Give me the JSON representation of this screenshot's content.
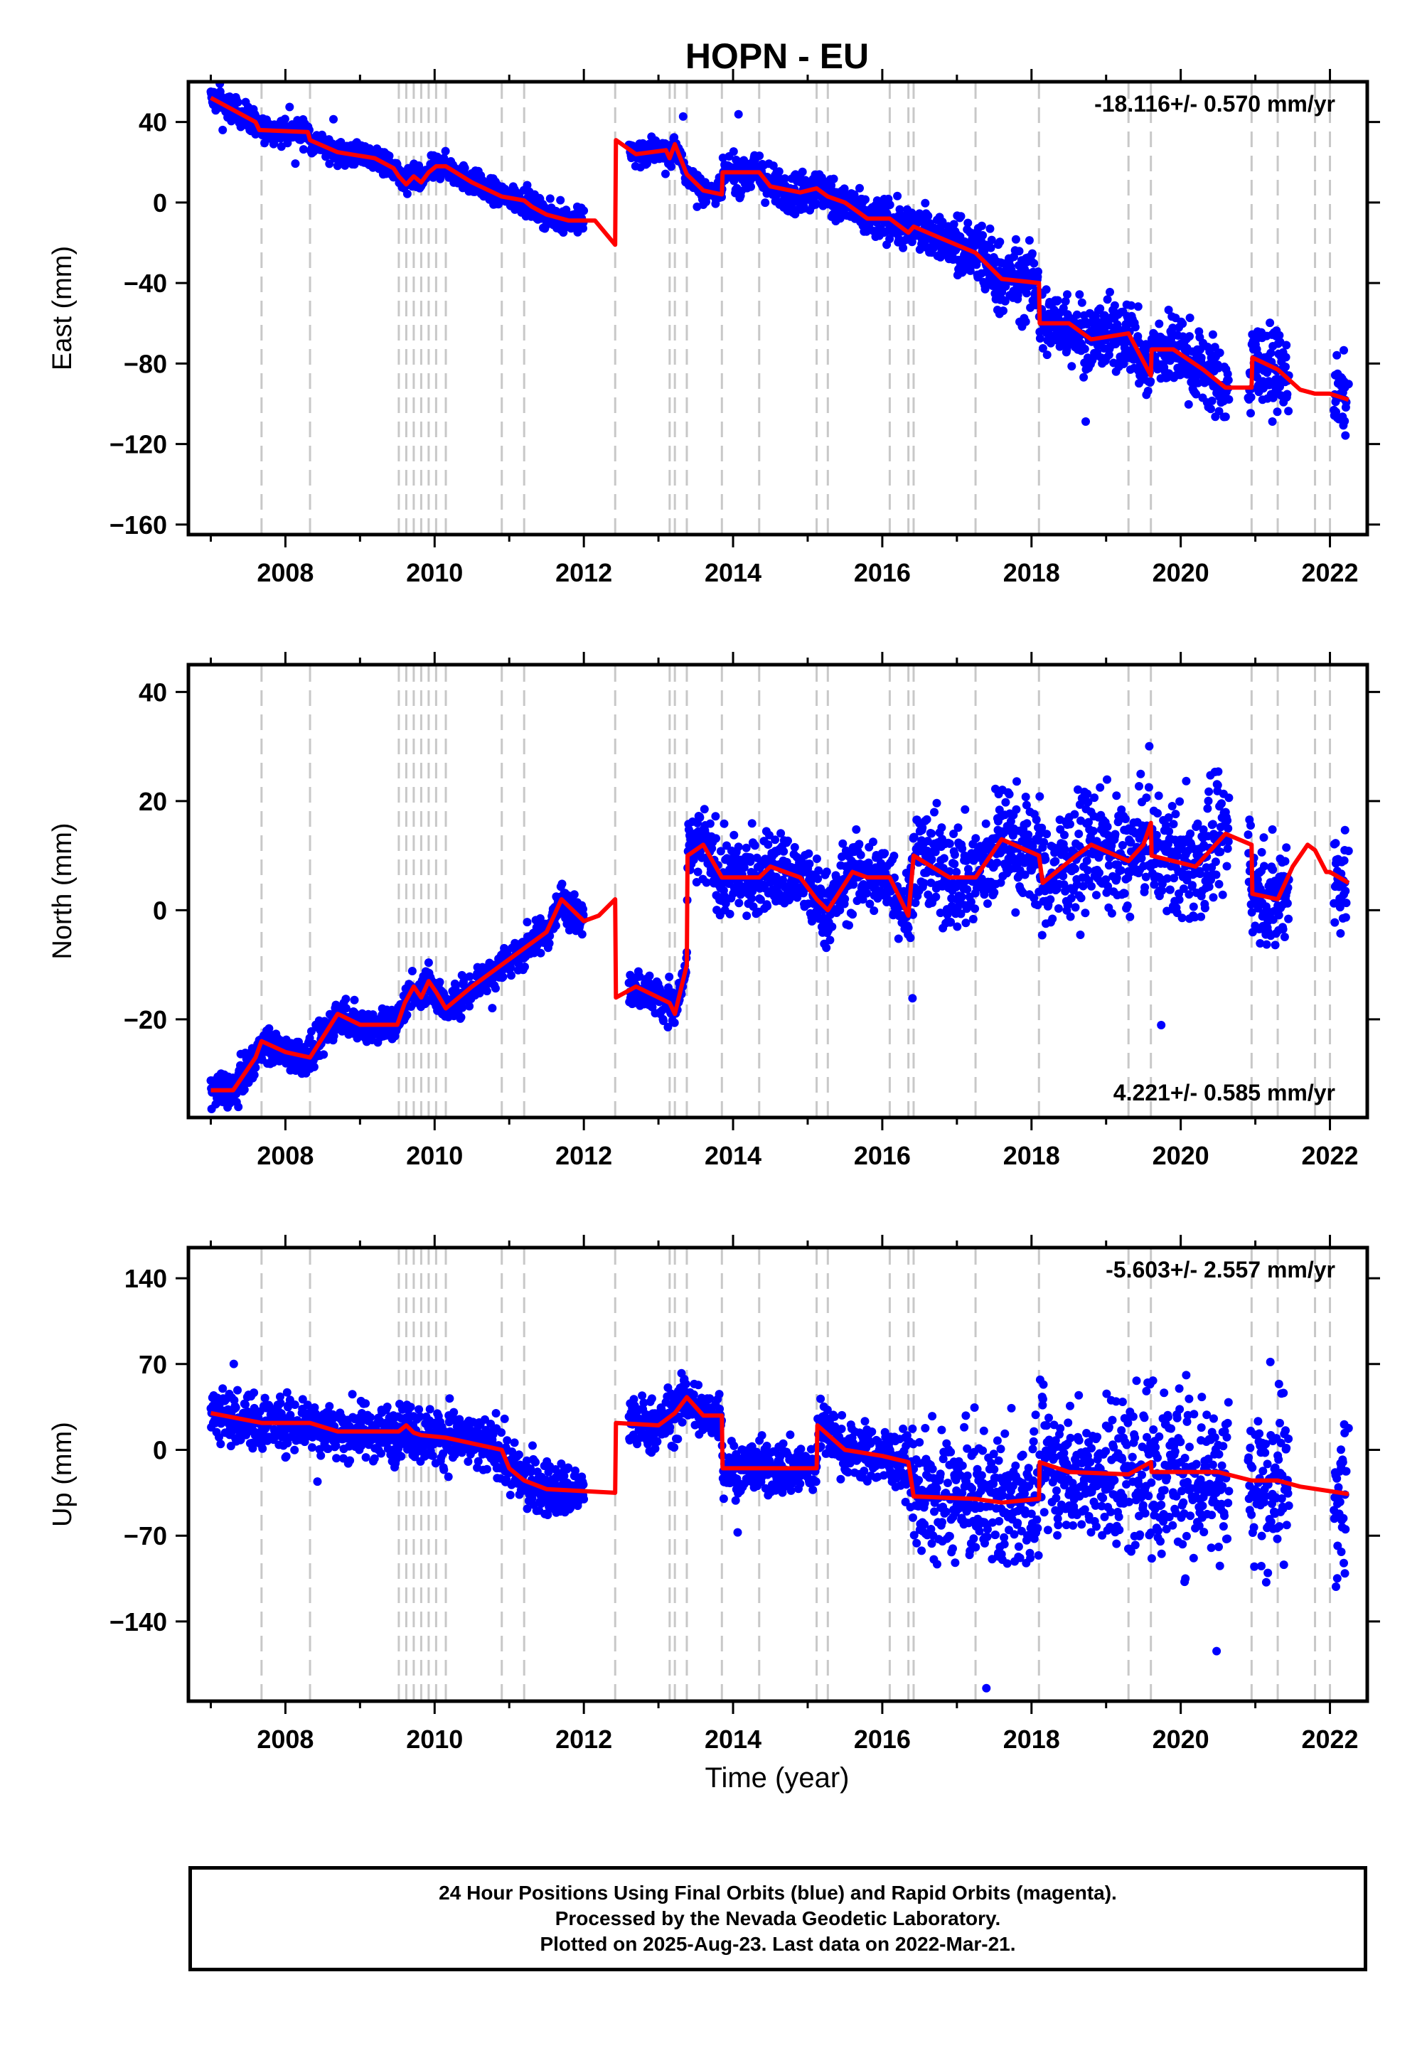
{
  "chart_data": {
    "type": "scatter",
    "title": "HOPN - EU",
    "xlabel": "Time (year)",
    "xlim": [
      2006.7,
      2022.5
    ],
    "x_ticks": [
      2008,
      2010,
      2012,
      2014,
      2016,
      2018,
      2020,
      2022
    ],
    "equipment_change_lines": [
      2007.68,
      2008.33,
      2009.52,
      2009.62,
      2009.72,
      2009.82,
      2009.92,
      2010.02,
      2010.15,
      2010.9,
      2011.2,
      2012.42,
      2013.15,
      2013.22,
      2013.38,
      2013.85,
      2014.35,
      2015.12,
      2015.27,
      2016.1,
      2016.35,
      2016.42,
      2017.25,
      2018.1,
      2019.3,
      2019.6,
      2020.95,
      2021.3,
      2021.8,
      2022.0
    ],
    "colors": {
      "points": "#0000ff",
      "model": "#ff0000",
      "event_lines": "#c8c8c8"
    },
    "panels": [
      {
        "name": "east",
        "ylabel": "East (mm)",
        "ylim": [
          -165,
          60
        ],
        "y_ticks": [
          40,
          0,
          -40,
          -80,
          -120,
          -160
        ],
        "velocity_label": "-18.116+/- 0.570 mm/yr",
        "velocity_pos": "top-right",
        "model": [
          [
            2007.0,
            52
          ],
          [
            2007.6,
            40
          ],
          [
            2007.65,
            36
          ],
          [
            2008.3,
            35
          ],
          [
            2008.33,
            31
          ],
          [
            2008.7,
            25
          ],
          [
            2009.2,
            22
          ],
          [
            2009.45,
            17
          ],
          [
            2009.52,
            13
          ],
          [
            2009.62,
            9
          ],
          [
            2009.72,
            13
          ],
          [
            2009.82,
            10
          ],
          [
            2009.92,
            15
          ],
          [
            2010.02,
            18
          ],
          [
            2010.15,
            18
          ],
          [
            2010.5,
            10
          ],
          [
            2010.9,
            3
          ],
          [
            2011.2,
            1
          ],
          [
            2011.3,
            -2
          ],
          [
            2011.5,
            -6
          ],
          [
            2011.8,
            -9
          ],
          [
            2012.15,
            -9
          ],
          [
            2012.42,
            -21
          ],
          [
            2012.43,
            31
          ],
          [
            2012.7,
            24
          ],
          [
            2013.1,
            26
          ],
          [
            2013.15,
            22
          ],
          [
            2013.22,
            29
          ],
          [
            2013.38,
            14
          ],
          [
            2013.6,
            6
          ],
          [
            2013.85,
            4
          ],
          [
            2013.86,
            15
          ],
          [
            2014.35,
            15
          ],
          [
            2014.5,
            8
          ],
          [
            2014.9,
            5
          ],
          [
            2015.12,
            7
          ],
          [
            2015.27,
            3
          ],
          [
            2015.5,
            0
          ],
          [
            2015.8,
            -8
          ],
          [
            2016.1,
            -8
          ],
          [
            2016.35,
            -15
          ],
          [
            2016.42,
            -12
          ],
          [
            2016.8,
            -18
          ],
          [
            2017.25,
            -25
          ],
          [
            2017.6,
            -38
          ],
          [
            2018.1,
            -40
          ],
          [
            2018.11,
            -60
          ],
          [
            2018.5,
            -60
          ],
          [
            2018.8,
            -68
          ],
          [
            2019.3,
            -65
          ],
          [
            2019.6,
            -86
          ],
          [
            2019.61,
            -73
          ],
          [
            2019.9,
            -73
          ],
          [
            2020.3,
            -83
          ],
          [
            2020.6,
            -92
          ],
          [
            2020.95,
            -92
          ],
          [
            2020.96,
            -77
          ],
          [
            2021.3,
            -83
          ],
          [
            2021.6,
            -93
          ],
          [
            2021.8,
            -95
          ],
          [
            2022.0,
            -95
          ],
          [
            2022.25,
            -98
          ]
        ]
      },
      {
        "name": "north",
        "ylabel": "North (mm)",
        "ylim": [
          -38,
          45
        ],
        "y_ticks": [
          40,
          20,
          0,
          -20
        ],
        "velocity_label": "4.221+/- 0.585 mm/yr",
        "velocity_pos": "bottom-right",
        "model": [
          [
            2007.0,
            -33
          ],
          [
            2007.3,
            -33
          ],
          [
            2007.6,
            -27
          ],
          [
            2007.68,
            -24
          ],
          [
            2008.0,
            -26
          ],
          [
            2008.33,
            -27
          ],
          [
            2008.7,
            -19
          ],
          [
            2009.0,
            -21
          ],
          [
            2009.5,
            -21
          ],
          [
            2009.6,
            -17
          ],
          [
            2009.72,
            -14
          ],
          [
            2009.82,
            -16
          ],
          [
            2009.92,
            -13
          ],
          [
            2010.02,
            -15
          ],
          [
            2010.15,
            -18
          ],
          [
            2010.5,
            -14
          ],
          [
            2010.9,
            -10
          ],
          [
            2011.2,
            -7
          ],
          [
            2011.5,
            -4
          ],
          [
            2011.7,
            2
          ],
          [
            2012.0,
            -2
          ],
          [
            2012.2,
            -1
          ],
          [
            2012.42,
            2
          ],
          [
            2012.43,
            -16
          ],
          [
            2012.7,
            -14
          ],
          [
            2013.15,
            -17
          ],
          [
            2013.22,
            -19
          ],
          [
            2013.38,
            -10
          ],
          [
            2013.39,
            10
          ],
          [
            2013.6,
            12
          ],
          [
            2013.85,
            6
          ],
          [
            2014.35,
            6
          ],
          [
            2014.5,
            8
          ],
          [
            2014.9,
            6
          ],
          [
            2015.12,
            2
          ],
          [
            2015.27,
            0
          ],
          [
            2015.6,
            7
          ],
          [
            2015.8,
            6
          ],
          [
            2016.1,
            6
          ],
          [
            2016.35,
            -1
          ],
          [
            2016.42,
            10
          ],
          [
            2016.9,
            6
          ],
          [
            2017.25,
            6
          ],
          [
            2017.6,
            13
          ],
          [
            2018.1,
            10
          ],
          [
            2018.15,
            5
          ],
          [
            2018.6,
            10
          ],
          [
            2018.8,
            12
          ],
          [
            2019.3,
            9
          ],
          [
            2019.5,
            12
          ],
          [
            2019.6,
            16
          ],
          [
            2019.61,
            10
          ],
          [
            2020.2,
            8
          ],
          [
            2020.6,
            14
          ],
          [
            2020.95,
            12
          ],
          [
            2020.96,
            3
          ],
          [
            2021.3,
            2
          ],
          [
            2021.5,
            8
          ],
          [
            2021.7,
            12
          ],
          [
            2021.8,
            11
          ],
          [
            2021.95,
            7
          ],
          [
            2022.0,
            7
          ],
          [
            2022.25,
            5
          ]
        ]
      },
      {
        "name": "up",
        "ylabel": "Up (mm)",
        "ylim": [
          -205,
          165
        ],
        "y_ticks": [
          140,
          70,
          0,
          -70,
          -140
        ],
        "velocity_label": "-5.603+/- 2.557 mm/yr",
        "velocity_pos": "top-right",
        "model": [
          [
            2007.0,
            30
          ],
          [
            2007.68,
            22
          ],
          [
            2008.33,
            22
          ],
          [
            2008.7,
            15
          ],
          [
            2009.52,
            15
          ],
          [
            2009.62,
            20
          ],
          [
            2009.72,
            14
          ],
          [
            2009.82,
            12
          ],
          [
            2010.15,
            10
          ],
          [
            2010.9,
            0
          ],
          [
            2011.0,
            -15
          ],
          [
            2011.2,
            -25
          ],
          [
            2011.5,
            -32
          ],
          [
            2012.42,
            -35
          ],
          [
            2012.43,
            22
          ],
          [
            2013.0,
            20
          ],
          [
            2013.22,
            30
          ],
          [
            2013.38,
            43
          ],
          [
            2013.6,
            28
          ],
          [
            2013.85,
            28
          ],
          [
            2013.86,
            -15
          ],
          [
            2014.35,
            -15
          ],
          [
            2015.12,
            -15
          ],
          [
            2015.13,
            20
          ],
          [
            2015.5,
            0
          ],
          [
            2016.0,
            -5
          ],
          [
            2016.35,
            -10
          ],
          [
            2016.42,
            -38
          ],
          [
            2017.25,
            -40
          ],
          [
            2017.6,
            -43
          ],
          [
            2018.1,
            -40
          ],
          [
            2018.11,
            -10
          ],
          [
            2018.5,
            -18
          ],
          [
            2019.3,
            -20
          ],
          [
            2019.6,
            -10
          ],
          [
            2019.61,
            -18
          ],
          [
            2020.5,
            -18
          ],
          [
            2020.95,
            -25
          ],
          [
            2021.3,
            -25
          ],
          [
            2021.6,
            -30
          ],
          [
            2022.25,
            -36
          ]
        ]
      }
    ]
  },
  "footer": {
    "line1": "24 Hour Positions Using Final Orbits (blue) and Rapid Orbits (magenta).",
    "line2": "Processed by the Nevada Geodetic Laboratory.",
    "line3": "Plotted on 2025-Aug-23. Last data on 2022-Mar-21."
  }
}
